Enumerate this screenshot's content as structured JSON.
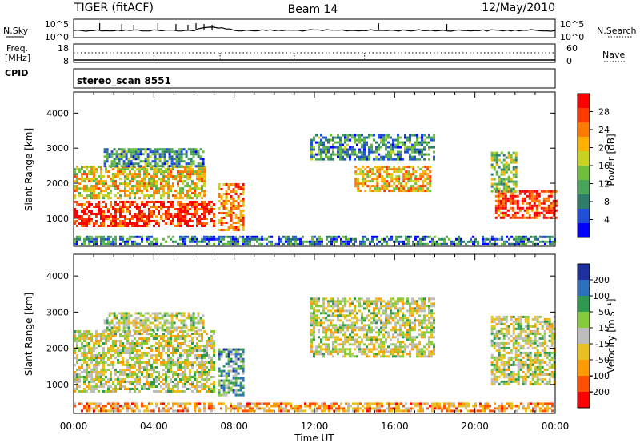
{
  "header": {
    "station": "TIGER (fitACF)",
    "beam": "Beam 14",
    "date": "12/May/2010"
  },
  "noise_panel": {
    "left_label": "N.Sky",
    "right_label": "N.Search",
    "left_ticks": [
      "10^5",
      "10^0"
    ],
    "right_ticks": [
      "10^5",
      "10^0"
    ]
  },
  "freq_panel": {
    "left_label_line1": "Freq.",
    "left_label_line2": "[MHz]",
    "left_ticks": [
      "18",
      "8"
    ],
    "right_ticks": [
      "60",
      "0"
    ],
    "right_label": "Nave",
    "cpid_label": "CPID",
    "program": "stereo_scan 8551"
  },
  "chart_data": [
    {
      "type": "heatmap",
      "parameter": "Power",
      "ylabel": "Slant Range [km]",
      "xlabel": "Time UT",
      "ylim": [
        200,
        4600
      ],
      "xlim": [
        0,
        24
      ],
      "yticks": [
        "1000",
        "2000",
        "3000",
        "4000"
      ],
      "xticks": [
        "00:00",
        "04:00",
        "08:00",
        "12:00",
        "16:00",
        "20:00",
        "00:00"
      ],
      "colorbar": {
        "label": "Power [dB]",
        "ticks": [
          "4",
          "8",
          "12",
          "16",
          "20",
          "24",
          "28"
        ],
        "colors": [
          "#0000ff",
          "#1f4fd8",
          "#2e7d6a",
          "#49a55a",
          "#6fbf3a",
          "#c8d21f",
          "#ffb000",
          "#ff7a00",
          "#ff3a00",
          "#ff0000"
        ]
      },
      "regions": [
        {
          "t0": 0.0,
          "t1": 7.0,
          "r0": 800,
          "r1": 1500,
          "level": 0.9
        },
        {
          "t0": 0.0,
          "t1": 6.5,
          "r0": 1600,
          "r1": 2500,
          "level": 0.6
        },
        {
          "t0": 1.5,
          "t1": 6.5,
          "r0": 2500,
          "r1": 3000,
          "level": 0.3
        },
        {
          "t0": 7.2,
          "t1": 8.5,
          "r0": 700,
          "r1": 2000,
          "level": 0.75
        },
        {
          "t0": 11.8,
          "t1": 18.0,
          "r0": 2700,
          "r1": 3400,
          "level": 0.3
        },
        {
          "t0": 14.0,
          "t1": 17.8,
          "r0": 1800,
          "r1": 2500,
          "level": 0.65
        },
        {
          "t0": 21.0,
          "t1": 24.0,
          "r0": 1000,
          "r1": 1800,
          "level": 0.9
        },
        {
          "t0": 20.8,
          "t1": 22.0,
          "r0": 1800,
          "r1": 2900,
          "level": 0.45
        },
        {
          "t0": 0.0,
          "t1": 24.0,
          "r0": 250,
          "r1": 500,
          "level": 0.25
        }
      ]
    },
    {
      "type": "heatmap",
      "parameter": "Velocity",
      "ylabel": "Slant Range [km]",
      "xlabel": "Time UT",
      "ylim": [
        200,
        4600
      ],
      "xlim": [
        0,
        24
      ],
      "yticks": [
        "1000",
        "2000",
        "3000",
        "4000"
      ],
      "xticks": [
        "00:00",
        "04:00",
        "08:00",
        "12:00",
        "16:00",
        "20:00",
        "00:00"
      ],
      "colorbar": {
        "label": "Velocity [m s⁻¹]",
        "ticks": [
          "200",
          "100",
          "50",
          "15",
          "-15",
          "-50",
          "-100",
          "-200"
        ],
        "colors": [
          "#1e2fa0",
          "#2d6fbf",
          "#2e9a50",
          "#86cc3a",
          "#bdbdbd",
          "#e8c020",
          "#ff9a00",
          "#ff5000",
          "#ff0000"
        ]
      },
      "regions": [
        {
          "t0": 0.0,
          "t1": 7.0,
          "r0": 800,
          "r1": 2500,
          "level": 0.5
        },
        {
          "t0": 1.5,
          "t1": 6.5,
          "r0": 2500,
          "r1": 3000,
          "level": 0.5
        },
        {
          "t0": 7.2,
          "t1": 8.5,
          "r0": 700,
          "r1": 2000,
          "level": 0.3
        },
        {
          "t0": 11.8,
          "t1": 18.0,
          "r0": 1800,
          "r1": 3400,
          "level": 0.5
        },
        {
          "t0": 20.8,
          "t1": 24.0,
          "r0": 1000,
          "r1": 2900,
          "level": 0.5
        },
        {
          "t0": 0.0,
          "t1": 24.0,
          "r0": 250,
          "r1": 500,
          "level": 0.7
        }
      ]
    }
  ]
}
